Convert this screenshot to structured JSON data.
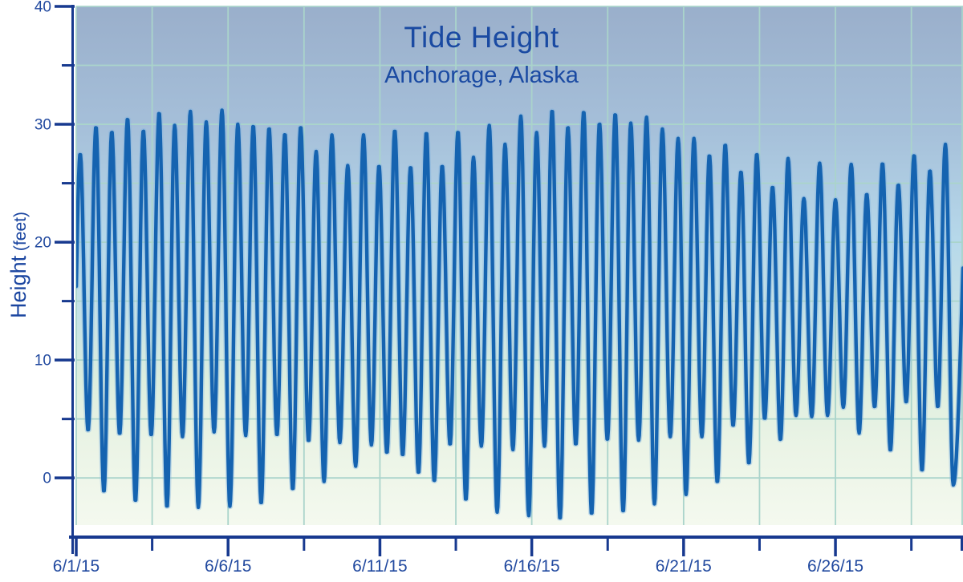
{
  "chart_data": {
    "type": "line",
    "title": "Tide Height",
    "subtitle": "Anchorage, Alaska",
    "ylabel": "Height (feet)",
    "ylabel_word": "Height",
    "ylabel_unit": "(feet)",
    "x_tick_labels": [
      "6/1/15",
      "6/6/15",
      "6/11/15",
      "6/16/15",
      "6/21/15",
      "6/26/15"
    ],
    "x_major_tick_days": [
      0,
      5,
      10,
      15,
      20,
      25
    ],
    "x_minor_tick_days": [
      2.5,
      7.5,
      12.5,
      17.5,
      22.5,
      27.5
    ],
    "x_grid_interval_days": 2.5,
    "x_range_days": [
      0,
      29.2
    ],
    "y_major_ticks": [
      0,
      10,
      20,
      30,
      40
    ],
    "y_minor_ticks": [
      5,
      15,
      25,
      35
    ],
    "y_grid_interval": 5,
    "ylim": [
      -4,
      40
    ],
    "grid": true,
    "legend": "none",
    "series": [
      {
        "units": "feet",
        "x_units": "days since 6/1/15",
        "interpolation": "cosine-through-extrema",
        "extrema": [
          [
            -0.13,
            5.0
          ],
          [
            0.13,
            27.5
          ],
          [
            0.39,
            4.0
          ],
          [
            0.65,
            29.8
          ],
          [
            0.91,
            -1.2
          ],
          [
            1.17,
            29.4
          ],
          [
            1.43,
            3.7
          ],
          [
            1.69,
            30.5
          ],
          [
            1.95,
            -2.0
          ],
          [
            2.21,
            29.5
          ],
          [
            2.47,
            3.6
          ],
          [
            2.73,
            31.0
          ],
          [
            2.99,
            -2.5
          ],
          [
            3.24,
            29.9
          ],
          [
            3.5,
            3.5
          ],
          [
            3.76,
            31.1
          ],
          [
            4.02,
            -2.5
          ],
          [
            4.28,
            30.2
          ],
          [
            4.54,
            3.9
          ],
          [
            4.8,
            31.2
          ],
          [
            5.06,
            -2.4
          ],
          [
            5.32,
            30.0
          ],
          [
            5.58,
            3.6
          ],
          [
            5.83,
            29.9
          ],
          [
            6.09,
            -2.2
          ],
          [
            6.35,
            29.7
          ],
          [
            6.61,
            3.6
          ],
          [
            6.87,
            29.2
          ],
          [
            7.13,
            -1.0
          ],
          [
            7.39,
            29.8
          ],
          [
            7.65,
            3.1
          ],
          [
            7.9,
            27.7
          ],
          [
            8.16,
            -0.3
          ],
          [
            8.42,
            29.1
          ],
          [
            8.68,
            3.0
          ],
          [
            8.94,
            26.5
          ],
          [
            9.2,
            1.0
          ],
          [
            9.46,
            29.1
          ],
          [
            9.72,
            2.8
          ],
          [
            9.97,
            26.5
          ],
          [
            10.23,
            2.1
          ],
          [
            10.49,
            29.5
          ],
          [
            10.75,
            1.9
          ],
          [
            11.01,
            26.4
          ],
          [
            11.27,
            0.4
          ],
          [
            11.53,
            29.3
          ],
          [
            11.79,
            -0.3
          ],
          [
            12.05,
            26.5
          ],
          [
            12.31,
            2.8
          ],
          [
            12.57,
            29.4
          ],
          [
            12.83,
            -1.9
          ],
          [
            13.08,
            27.2
          ],
          [
            13.34,
            2.7
          ],
          [
            13.6,
            29.9
          ],
          [
            13.86,
            -2.9
          ],
          [
            14.12,
            28.3
          ],
          [
            14.38,
            2.4
          ],
          [
            14.64,
            30.7
          ],
          [
            14.9,
            -3.2
          ],
          [
            15.16,
            29.3
          ],
          [
            15.42,
            2.7
          ],
          [
            15.67,
            31.2
          ],
          [
            15.93,
            -3.5
          ],
          [
            16.19,
            29.8
          ],
          [
            16.45,
            2.8
          ],
          [
            16.71,
            31.1
          ],
          [
            16.97,
            -3.1
          ],
          [
            17.23,
            30.1
          ],
          [
            17.49,
            3.2
          ],
          [
            17.75,
            30.9
          ],
          [
            18.01,
            -2.9
          ],
          [
            18.26,
            30.1
          ],
          [
            18.52,
            3.2
          ],
          [
            18.78,
            30.6
          ],
          [
            19.04,
            -2.2
          ],
          [
            19.3,
            29.6
          ],
          [
            19.56,
            3.5
          ],
          [
            19.82,
            28.8
          ],
          [
            20.08,
            -1.4
          ],
          [
            20.34,
            28.8
          ],
          [
            20.6,
            3.5
          ],
          [
            20.85,
            27.4
          ],
          [
            21.11,
            -0.4
          ],
          [
            21.37,
            28.3
          ],
          [
            21.63,
            4.4
          ],
          [
            21.89,
            26.0
          ],
          [
            22.15,
            1.2
          ],
          [
            22.41,
            27.5
          ],
          [
            22.67,
            5.0
          ],
          [
            22.93,
            24.7
          ],
          [
            23.19,
            3.2
          ],
          [
            23.44,
            27.1
          ],
          [
            23.7,
            5.3
          ],
          [
            23.96,
            23.7
          ],
          [
            24.22,
            5.2
          ],
          [
            24.48,
            26.7
          ],
          [
            24.74,
            5.3
          ],
          [
            25.0,
            23.6
          ],
          [
            25.26,
            6.0
          ],
          [
            25.52,
            26.6
          ],
          [
            25.78,
            3.8
          ],
          [
            26.03,
            24.1
          ],
          [
            26.29,
            6.0
          ],
          [
            26.55,
            26.7
          ],
          [
            26.81,
            2.3
          ],
          [
            27.07,
            24.9
          ],
          [
            27.33,
            6.4
          ],
          [
            27.59,
            27.4
          ],
          [
            27.85,
            0.6
          ],
          [
            28.11,
            26.1
          ],
          [
            28.37,
            6.0
          ],
          [
            28.62,
            28.3
          ],
          [
            28.88,
            -0.6
          ],
          [
            29.42,
            28.0
          ]
        ]
      }
    ],
    "colors": {
      "title_text": "#1a4aa2",
      "axis_line": "#17398f",
      "tick_label": "#21499f",
      "line": "#1563b0",
      "line_halo": "#7fb2de",
      "gridline": "#aad4cb",
      "plot_gradient": [
        "#9aafcb",
        "#a5bfd9",
        "#b6d8ea",
        "#c6e2e6",
        "#dceede",
        "#ebf4e6",
        "#f4f9ef"
      ],
      "plot_gradient_offsets": [
        0,
        0.23,
        0.45,
        0.6,
        0.72,
        0.85,
        1
      ],
      "page_background": "#ffffff"
    }
  }
}
